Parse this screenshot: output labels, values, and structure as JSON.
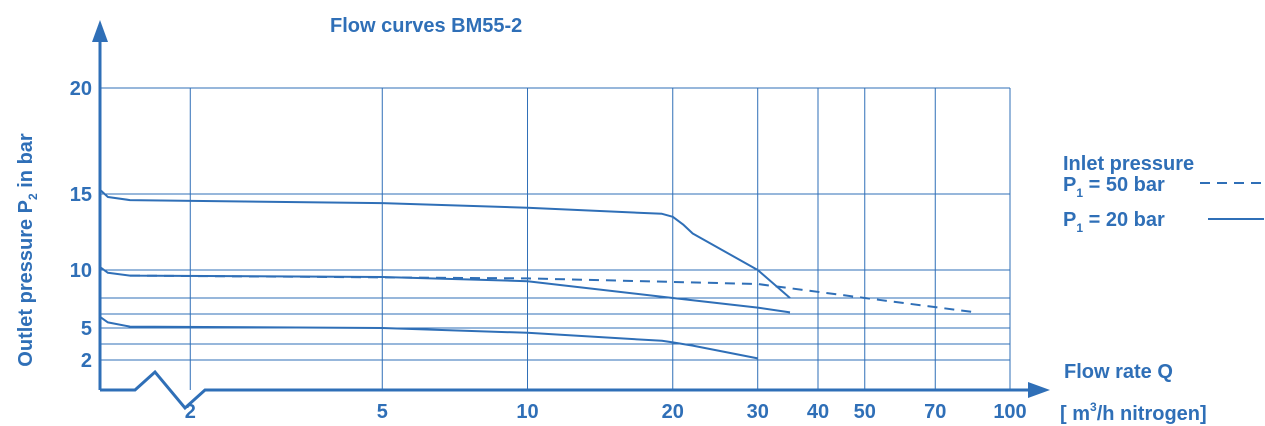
{
  "colors": {
    "accent": "#2f6fb7",
    "grid": "#2f6fb7"
  },
  "chart_data": {
    "type": "line",
    "title": "Flow curves BM55-2",
    "ylabel": {
      "prefix": "Outlet pressure P",
      "sub": "2",
      "suffix": " in bar"
    },
    "xlabel": {
      "line1": "Flow rate Q",
      "line2_prefix": "[ m",
      "line2_sup": "3",
      "line2_suffix": "/h nitrogen]"
    },
    "legend": {
      "title": "Inlet pressure",
      "entries": [
        {
          "prefix": "P",
          "sub": "1",
          "suffix": " = 50 bar",
          "style": "dashed"
        },
        {
          "prefix": "P",
          "sub": "1",
          "suffix": " = 20 bar",
          "style": "solid"
        }
      ]
    },
    "x_scale": "log",
    "x_ticks": [
      {
        "value": 2,
        "label": "2"
      },
      {
        "value": 5,
        "label": "5"
      },
      {
        "value": 10,
        "label": "10"
      },
      {
        "value": 20,
        "label": "20"
      },
      {
        "value": 30,
        "label": "30"
      },
      {
        "value": 40,
        "label": "40"
      },
      {
        "value": 50,
        "label": "50"
      },
      {
        "value": 70,
        "label": "70"
      },
      {
        "value": 100,
        "label": "100"
      }
    ],
    "y_ticks": [
      {
        "value": 2,
        "label": "2"
      },
      {
        "value": 5,
        "label": "5"
      },
      {
        "value": 10,
        "label": "10"
      },
      {
        "value": 15,
        "label": "15"
      },
      {
        "value": 20,
        "label": "20"
      }
    ],
    "y_gridlines": [
      2,
      4,
      5,
      6,
      8,
      10,
      15,
      20
    ],
    "x_gridlines": [
      2,
      5,
      10,
      20,
      30,
      40,
      50,
      70,
      100
    ],
    "xlim": [
      1.3,
      100
    ],
    "ylim": [
      0,
      20
    ],
    "series": [
      {
        "style": "solid",
        "points": [
          [
            1.3,
            15.2
          ],
          [
            1.35,
            14.8
          ],
          [
            1.5,
            14.6
          ],
          [
            5,
            14.4
          ],
          [
            10,
            14.1
          ],
          [
            19,
            13.7
          ],
          [
            20,
            13.5
          ],
          [
            21,
            13.0
          ],
          [
            22,
            12.4
          ],
          [
            30,
            10
          ],
          [
            35,
            8.0
          ]
        ]
      },
      {
        "style": "solid",
        "points": [
          [
            1.3,
            10.2
          ],
          [
            1.35,
            9.8
          ],
          [
            1.5,
            9.6
          ],
          [
            5,
            9.5
          ],
          [
            10,
            9.2
          ],
          [
            20,
            8.0
          ],
          [
            30,
            6.8
          ],
          [
            35,
            6.2
          ]
        ]
      },
      {
        "style": "dashed",
        "points": [
          [
            1.5,
            9.6
          ],
          [
            10,
            9.4
          ],
          [
            30,
            9.0
          ],
          [
            50,
            8.0
          ],
          [
            85,
            6.2
          ]
        ]
      },
      {
        "style": "solid",
        "points": [
          [
            1.3,
            5.8
          ],
          [
            1.35,
            5.4
          ],
          [
            1.5,
            5.1
          ],
          [
            5,
            5.0
          ],
          [
            10,
            4.7
          ],
          [
            19,
            4.2
          ],
          [
            20,
            4.1
          ],
          [
            22,
            3.8
          ],
          [
            30,
            2.2
          ]
        ]
      }
    ]
  }
}
